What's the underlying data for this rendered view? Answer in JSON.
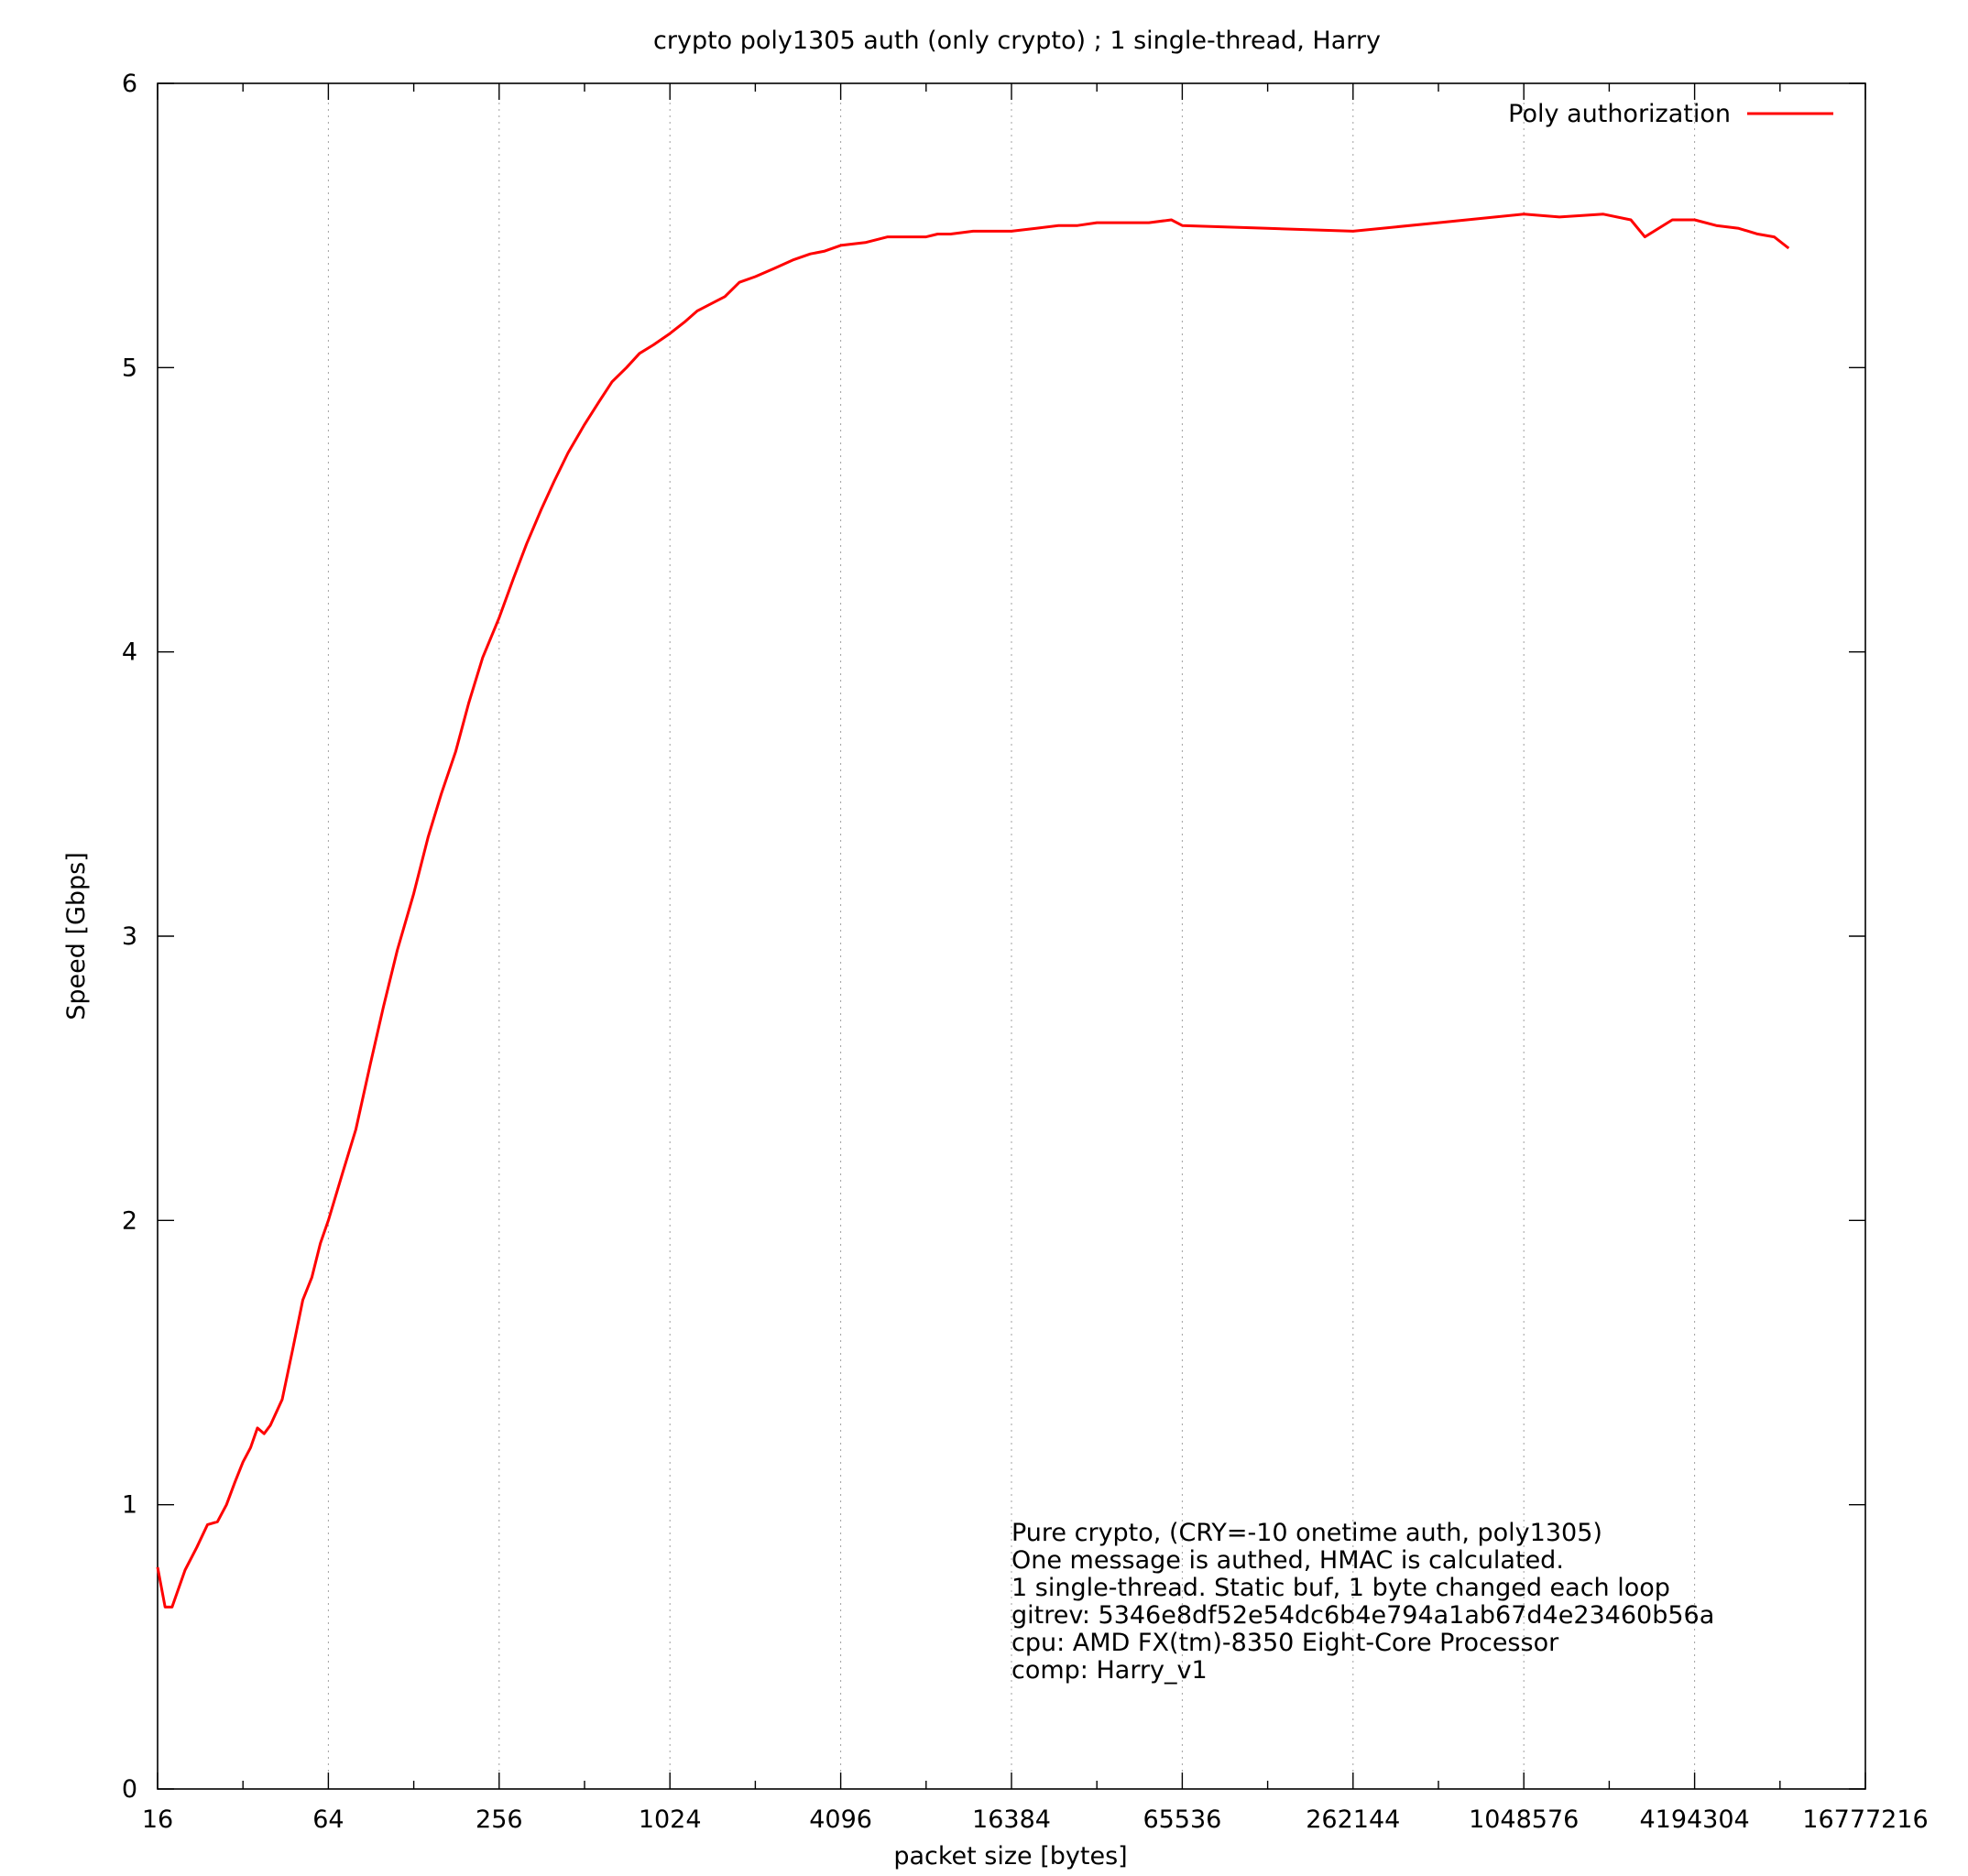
{
  "chart_data": {
    "type": "line",
    "title": "crypto poly1305 auth (only crypto) ; 1 single-thread, Harry",
    "xlabel": "packet size [bytes]",
    "ylabel": "Speed [Gbps]",
    "x_scale": "log2",
    "xlim": [
      16,
      16777216
    ],
    "ylim": [
      0,
      6
    ],
    "grid": "vertical-dotted",
    "legend_position": "top-right",
    "x_ticks": [
      "16",
      "64",
      "256",
      "1024",
      "4096",
      "16384",
      "65536",
      "262144",
      "1048576",
      "4194304",
      "16777216"
    ],
    "y_ticks": [
      "0",
      "1",
      "2",
      "3",
      "4",
      "5",
      "6"
    ],
    "annotation": [
      "Pure crypto, (CRY=-10 onetime auth, poly1305)",
      "One message is authed, HMAC is calculated.",
      "1 single-thread. Static buf, 1 byte changed each loop",
      "gitrev: 5346e8df52e54dc6b4e794a1ab67d4e23460b56a",
      "cpu: AMD FX(tm)-8350 Eight-Core Processor",
      "comp: Harry_v1"
    ],
    "series": [
      {
        "name": "Poly authorization",
        "color": "#ff0000",
        "x": [
          16,
          17,
          18,
          20,
          22,
          24,
          26,
          28,
          30,
          32,
          34,
          36,
          38,
          40,
          44,
          48,
          52,
          56,
          60,
          64,
          72,
          80,
          90,
          100,
          112,
          128,
          144,
          160,
          180,
          200,
          224,
          256,
          288,
          320,
          360,
          400,
          448,
          512,
          576,
          640,
          720,
          800,
          896,
          1024,
          1152,
          1280,
          1400,
          1600,
          1800,
          2048,
          2400,
          2800,
          3200,
          3600,
          4096,
          5000,
          6000,
          7000,
          8192,
          9000,
          10000,
          12000,
          14000,
          16384,
          20000,
          24000,
          28000,
          32768,
          40000,
          50000,
          60000,
          65536,
          131072,
          262144,
          524288,
          1048576,
          1400000,
          2000000,
          2500000,
          2800000,
          3500000,
          4194304,
          5000000,
          6000000,
          7000000,
          8000000,
          9000000
        ],
        "y": [
          0.78,
          0.64,
          0.64,
          0.77,
          0.85,
          0.93,
          0.94,
          1.0,
          1.08,
          1.15,
          1.2,
          1.27,
          1.25,
          1.28,
          1.37,
          1.55,
          1.72,
          1.8,
          1.92,
          2.0,
          2.17,
          2.32,
          2.55,
          2.75,
          2.95,
          3.15,
          3.35,
          3.5,
          3.65,
          3.82,
          3.98,
          4.12,
          4.26,
          4.38,
          4.5,
          4.6,
          4.7,
          4.8,
          4.88,
          4.95,
          5.0,
          5.05,
          5.08,
          5.12,
          5.16,
          5.2,
          5.22,
          5.25,
          5.3,
          5.32,
          5.35,
          5.38,
          5.4,
          5.41,
          5.43,
          5.44,
          5.46,
          5.46,
          5.46,
          5.47,
          5.47,
          5.48,
          5.48,
          5.48,
          5.49,
          5.5,
          5.5,
          5.51,
          5.51,
          5.51,
          5.52,
          5.5,
          5.49,
          5.48,
          5.51,
          5.54,
          5.53,
          5.54,
          5.52,
          5.46,
          5.52,
          5.52,
          5.5,
          5.49,
          5.47,
          5.46,
          5.42
        ]
      }
    ]
  }
}
